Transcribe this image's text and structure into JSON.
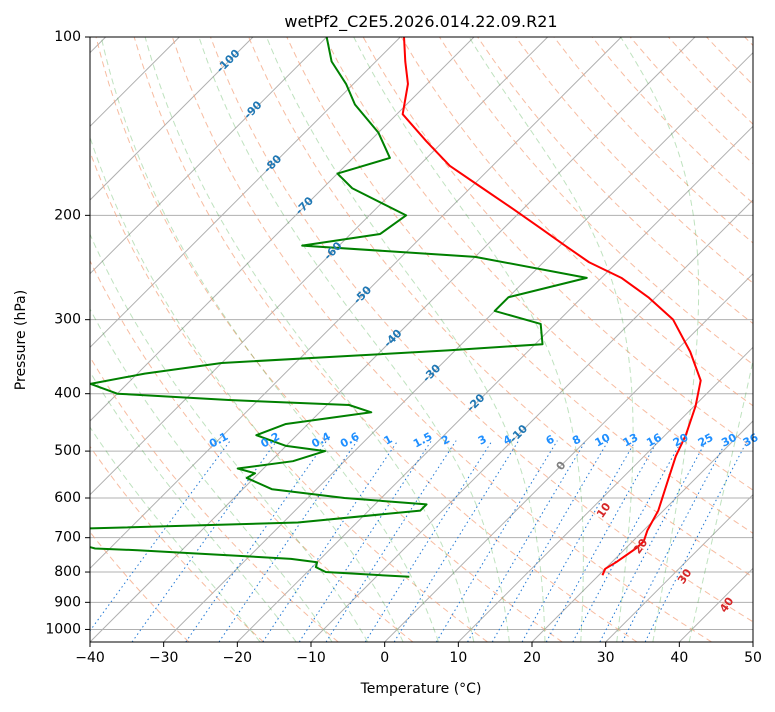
{
  "chart_data": {
    "type": "skewt",
    "title": "wetPf2_C2E5.2026.014.22.09.R21",
    "xlabel": "Temperature (°C)",
    "ylabel": "Pressure (hPa)",
    "xlim": [
      -40,
      50
    ],
    "ylim": [
      1050,
      100
    ],
    "y_scale": "log",
    "grid": true,
    "x_ticks": [
      "−40",
      "−30",
      "−20",
      "−10",
      "0",
      "10",
      "20",
      "30",
      "40",
      "50"
    ],
    "x_tick_values": [
      -40,
      -30,
      -20,
      -10,
      0,
      10,
      20,
      30,
      40,
      50
    ],
    "y_ticks": [
      "100",
      "200",
      "300",
      "400",
      "500",
      "600",
      "700",
      "800",
      "900",
      "1000"
    ],
    "y_tick_values": [
      100,
      200,
      300,
      400,
      500,
      600,
      700,
      800,
      900,
      1000
    ],
    "isotherm_labels": [
      {
        "text": "-100",
        "t": -100,
        "p": 110
      },
      {
        "text": "-90",
        "t": -90,
        "p": 133
      },
      {
        "text": "-80",
        "t": -80,
        "p": 164
      },
      {
        "text": "-70",
        "t": -70,
        "p": 193
      },
      {
        "text": "-60",
        "t": -60,
        "p": 230
      },
      {
        "text": "-50",
        "t": -50,
        "p": 273
      },
      {
        "text": "-40",
        "t": -40,
        "p": 323
      },
      {
        "text": "-30",
        "t": -30,
        "p": 370
      },
      {
        "text": "-20",
        "t": -20,
        "p": 415
      },
      {
        "text": "-10",
        "t": -10,
        "p": 468
      }
    ],
    "mixing_ratio_labels": {
      "p": 480,
      "values": [
        "0.1",
        "0.2",
        "0.4",
        "0.6",
        "1",
        "1.5",
        "2",
        "3",
        "4",
        "6",
        "8",
        "10",
        "13",
        "16",
        "20",
        "25",
        "30",
        "36"
      ],
      "x_positions": [
        -22.5,
        -15.5,
        -8.6,
        -4.7,
        0.5,
        5.2,
        8.3,
        13.3,
        16.7,
        22.5,
        26.1,
        29.6,
        33.4,
        36.6,
        40.2,
        43.6,
        46.8,
        49.7
      ]
    },
    "wetbulb_zero_labels": [
      {
        "text": "0",
        "t": 24.0,
        "p": 530,
        "color": "#7f7f7f"
      },
      {
        "text": "10",
        "t": 29.8,
        "p": 630,
        "color": "#d62728"
      },
      {
        "text": "20",
        "t": 34.8,
        "p": 725,
        "color": "#d62728"
      },
      {
        "text": "30",
        "t": 40.8,
        "p": 815,
        "color": "#d62728"
      },
      {
        "text": "40",
        "t": 46.5,
        "p": 910,
        "color": "#d62728"
      }
    ],
    "series": [
      {
        "color": "#ff0000",
        "points": [
          [
            20.5,
            810
          ],
          [
            20.0,
            790
          ],
          [
            20.6,
            770
          ],
          [
            21.4,
            730
          ],
          [
            21.5,
            710
          ],
          [
            20.5,
            680
          ],
          [
            19.3,
            630
          ],
          [
            16.5,
            560
          ],
          [
            14.3,
            510
          ],
          [
            12.8,
            470
          ],
          [
            10.2,
            420
          ],
          [
            7.4,
            380
          ],
          [
            2.1,
            340
          ],
          [
            -4.6,
            300
          ],
          [
            -11.0,
            275
          ],
          [
            -17.3,
            255
          ],
          [
            -23.8,
            240
          ],
          [
            -29.3,
            225
          ],
          [
            -35.1,
            210
          ],
          [
            -41.4,
            195
          ],
          [
            -48.3,
            180
          ],
          [
            -55.8,
            165
          ],
          [
            -62.3,
            150
          ],
          [
            -69.2,
            135
          ],
          [
            -72.6,
            120
          ],
          [
            -76.0,
            110
          ],
          [
            -79.5,
            100
          ]
        ]
      },
      {
        "color": "#008000",
        "points": [
          [
            -5.5,
            815
          ],
          [
            -17.5,
            800
          ],
          [
            -19.5,
            785
          ],
          [
            -20.0,
            770
          ],
          [
            -24.0,
            760
          ],
          [
            -46.0,
            735
          ],
          [
            -52.0,
            730
          ],
          [
            -64.0,
            680
          ],
          [
            -28.0,
            660
          ],
          [
            -13.0,
            630
          ],
          [
            -13.0,
            615
          ],
          [
            -25.0,
            600
          ],
          [
            -36.0,
            580
          ],
          [
            -41.0,
            555
          ],
          [
            -40.5,
            545
          ],
          [
            -43.5,
            535
          ],
          [
            -37.0,
            520
          ],
          [
            -34.0,
            500
          ],
          [
            -40.0,
            490
          ],
          [
            -45.5,
            470
          ],
          [
            -43.0,
            450
          ],
          [
            -33.0,
            430
          ],
          [
            -37.0,
            418
          ],
          [
            -54.0,
            410
          ],
          [
            -70.0,
            400
          ],
          [
            -75.0,
            385
          ],
          [
            -69.0,
            370
          ],
          [
            -60.0,
            355
          ],
          [
            -43.0,
            345
          ],
          [
            -31.0,
            338
          ],
          [
            -19.0,
            330
          ],
          [
            -22.0,
            305
          ],
          [
            -30.0,
            290
          ],
          [
            -30.0,
            275
          ],
          [
            -22.0,
            255
          ],
          [
            -40.0,
            235
          ],
          [
            -65.0,
            225
          ],
          [
            -56.0,
            215
          ],
          [
            -55.0,
            200
          ],
          [
            -66.0,
            180
          ],
          [
            -70.0,
            170
          ],
          [
            -65.0,
            160
          ],
          [
            -70.0,
            145
          ],
          [
            -77.0,
            130
          ],
          [
            -81.0,
            120
          ],
          [
            -86.0,
            110
          ],
          [
            -90.0,
            100
          ]
        ]
      }
    ]
  }
}
